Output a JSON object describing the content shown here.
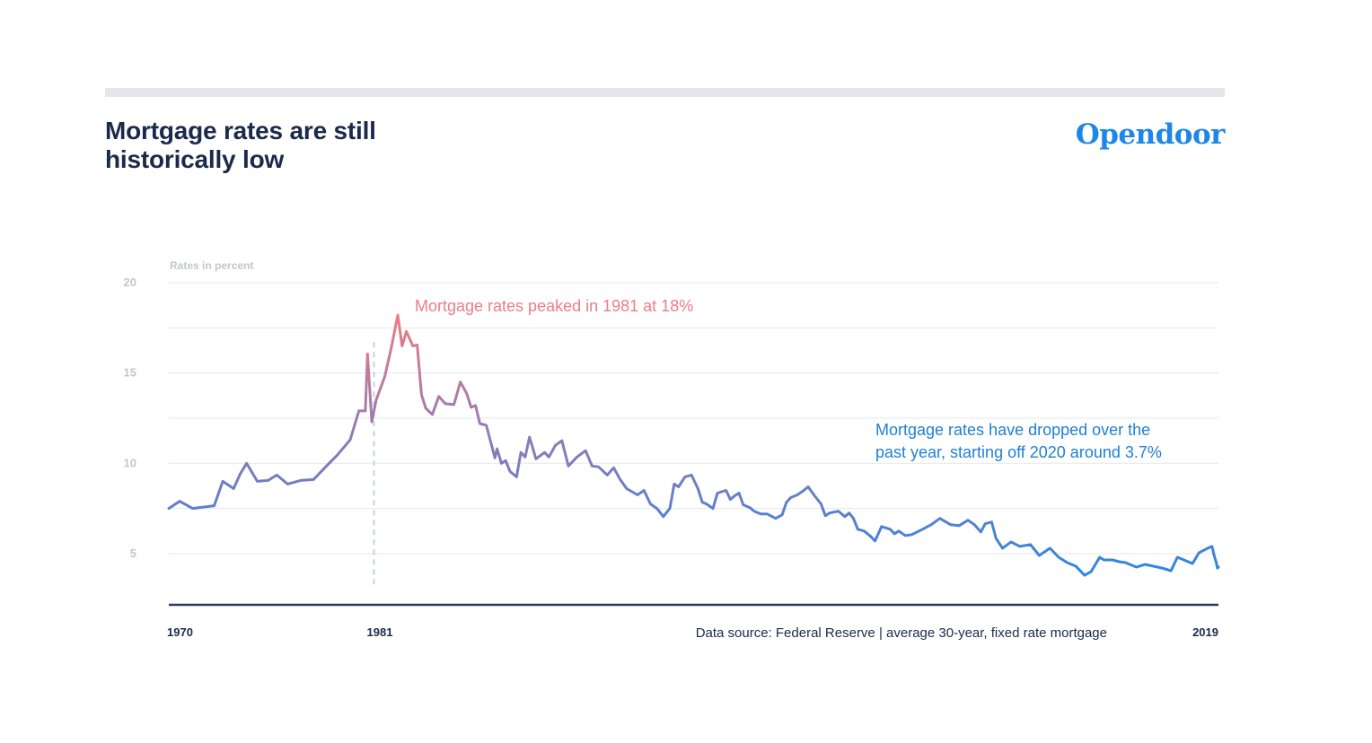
{
  "header": {
    "title_line1": "Mortgage rates are still",
    "title_line2": "historically low",
    "brand": "Opendoor"
  },
  "colors": {
    "title": "#1b2a4a",
    "brand": "#1c87e6",
    "line_early": "#5b7fd0",
    "line_peak": "#ef7c86",
    "line_late": "#2f86e0",
    "grid": "#e6e7ea",
    "baseline": "#2b3a55",
    "peak_marker": "#c9cfe0",
    "annotation_peak": "#ef7c86",
    "annotation_recent": "#1f7fd4",
    "tick_label": "#c3c6cd"
  },
  "chart_data": {
    "type": "line",
    "title": "Mortgage rates are still historically low",
    "xlabel": "",
    "ylabel": "Rates in percent",
    "x_tick_labels": [
      "1970",
      "1981",
      "2019"
    ],
    "x_tick_years": [
      1971.3,
      1980.8,
      2019.9
    ],
    "y_ticks": [
      5,
      10,
      15,
      20
    ],
    "y_gridlines": [
      5,
      7.5,
      10,
      12.5,
      15,
      17.5,
      20
    ],
    "xlim": [
      1971.3,
      2019.9
    ],
    "ylim": [
      2.8,
      20
    ],
    "grid": true,
    "legend": "none",
    "annotations": [
      {
        "text": "Mortgage rates peaked in 1981 at 18%",
        "x": 1980.8,
        "y": 18.2,
        "marker": "dashed-vertical"
      },
      {
        "text_line1": "Mortgage rates have dropped over the",
        "text_line2": "past year, starting off 2020 around 3.7%",
        "x": 2019.9,
        "y": 4.2
      }
    ],
    "source": "Data source:  Federal Reserve | average 30-year, fixed rate mortgage",
    "series": [
      {
        "name": "Average 30-year fixed rate mortgage (%)",
        "points": [
          [
            1971.3,
            7.5
          ],
          [
            1971.8,
            7.9
          ],
          [
            1972.4,
            7.5
          ],
          [
            1973.4,
            7.65
          ],
          [
            1973.8,
            9.0
          ],
          [
            1974.3,
            8.6
          ],
          [
            1974.6,
            9.4
          ],
          [
            1974.9,
            10.0
          ],
          [
            1975.4,
            9.0
          ],
          [
            1975.9,
            9.05
          ],
          [
            1976.3,
            9.35
          ],
          [
            1976.8,
            8.85
          ],
          [
            1977.4,
            9.05
          ],
          [
            1978.0,
            9.1
          ],
          [
            1978.6,
            9.85
          ],
          [
            1979.1,
            10.45
          ],
          [
            1979.7,
            11.3
          ],
          [
            1980.1,
            12.9
          ],
          [
            1980.4,
            12.9
          ],
          [
            1980.5,
            16.05
          ],
          [
            1980.7,
            12.3
          ],
          [
            1980.9,
            13.5
          ],
          [
            1981.3,
            14.8
          ],
          [
            1981.6,
            16.4
          ],
          [
            1981.9,
            18.2
          ],
          [
            1982.1,
            16.5
          ],
          [
            1982.3,
            17.3
          ],
          [
            1982.6,
            16.5
          ],
          [
            1982.8,
            16.55
          ],
          [
            1983.0,
            13.8
          ],
          [
            1983.2,
            13.05
          ],
          [
            1983.5,
            12.7
          ],
          [
            1983.8,
            13.7
          ],
          [
            1984.1,
            13.3
          ],
          [
            1984.5,
            13.25
          ],
          [
            1984.8,
            14.5
          ],
          [
            1985.1,
            13.85
          ],
          [
            1985.3,
            13.1
          ],
          [
            1985.5,
            13.2
          ],
          [
            1985.7,
            12.2
          ],
          [
            1986.0,
            12.1
          ],
          [
            1986.4,
            10.3
          ],
          [
            1986.5,
            10.8
          ],
          [
            1986.7,
            10.0
          ],
          [
            1986.9,
            10.15
          ],
          [
            1987.1,
            9.55
          ],
          [
            1987.4,
            9.25
          ],
          [
            1987.6,
            10.6
          ],
          [
            1987.8,
            10.35
          ],
          [
            1988.0,
            11.45
          ],
          [
            1988.3,
            10.25
          ],
          [
            1988.7,
            10.6
          ],
          [
            1988.9,
            10.35
          ],
          [
            1989.2,
            11.0
          ],
          [
            1989.5,
            11.25
          ],
          [
            1989.8,
            9.85
          ],
          [
            1990.2,
            10.35
          ],
          [
            1990.6,
            10.7
          ],
          [
            1990.9,
            9.85
          ],
          [
            1991.2,
            9.8
          ],
          [
            1991.6,
            9.35
          ],
          [
            1991.9,
            9.75
          ],
          [
            1992.2,
            9.1
          ],
          [
            1992.5,
            8.6
          ],
          [
            1993.0,
            8.25
          ],
          [
            1993.3,
            8.5
          ],
          [
            1993.6,
            7.75
          ],
          [
            1993.9,
            7.5
          ],
          [
            1994.2,
            7.05
          ],
          [
            1994.5,
            7.5
          ],
          [
            1994.7,
            8.85
          ],
          [
            1994.9,
            8.7
          ],
          [
            1995.2,
            9.25
          ],
          [
            1995.5,
            9.35
          ],
          [
            1995.8,
            8.6
          ],
          [
            1996.0,
            7.85
          ],
          [
            1996.2,
            7.75
          ],
          [
            1996.5,
            7.5
          ],
          [
            1996.7,
            8.35
          ],
          [
            1997.1,
            8.5
          ],
          [
            1997.3,
            8.0
          ],
          [
            1997.5,
            8.2
          ],
          [
            1997.7,
            8.35
          ],
          [
            1997.9,
            7.7
          ],
          [
            1998.2,
            7.55
          ],
          [
            1998.4,
            7.35
          ],
          [
            1998.7,
            7.2
          ],
          [
            1999.0,
            7.2
          ],
          [
            1999.4,
            6.95
          ],
          [
            1999.7,
            7.15
          ],
          [
            1999.9,
            7.85
          ],
          [
            2000.1,
            8.1
          ],
          [
            2000.4,
            8.25
          ],
          [
            2000.7,
            8.5
          ],
          [
            2000.9,
            8.7
          ],
          [
            2001.2,
            8.2
          ],
          [
            2001.5,
            7.75
          ],
          [
            2001.7,
            7.1
          ],
          [
            2001.9,
            7.25
          ],
          [
            2002.3,
            7.35
          ],
          [
            2002.6,
            7.05
          ],
          [
            2002.8,
            7.25
          ],
          [
            2003.0,
            6.95
          ],
          [
            2003.2,
            6.35
          ],
          [
            2003.5,
            6.25
          ],
          [
            2003.8,
            5.95
          ],
          [
            2004.0,
            5.7
          ],
          [
            2004.3,
            6.5
          ],
          [
            2004.7,
            6.35
          ],
          [
            2004.9,
            6.1
          ],
          [
            2005.1,
            6.25
          ],
          [
            2005.4,
            6.0
          ],
          [
            2005.7,
            6.05
          ],
          [
            2006.2,
            6.35
          ],
          [
            2006.6,
            6.6
          ],
          [
            2007.0,
            6.95
          ],
          [
            2007.5,
            6.6
          ],
          [
            2007.9,
            6.55
          ],
          [
            2008.3,
            6.85
          ],
          [
            2008.6,
            6.6
          ],
          [
            2008.9,
            6.2
          ],
          [
            2009.1,
            6.65
          ],
          [
            2009.4,
            6.75
          ],
          [
            2009.6,
            5.85
          ],
          [
            2009.9,
            5.3
          ],
          [
            2010.3,
            5.65
          ],
          [
            2010.7,
            5.4
          ],
          [
            2011.2,
            5.5
          ],
          [
            2011.6,
            4.9
          ],
          [
            2012.1,
            5.3
          ],
          [
            2012.5,
            4.8
          ],
          [
            2012.9,
            4.5
          ],
          [
            2013.3,
            4.3
          ],
          [
            2013.7,
            3.8
          ],
          [
            2014.0,
            4.0
          ],
          [
            2014.4,
            4.8
          ],
          [
            2014.6,
            4.65
          ],
          [
            2015.0,
            4.65
          ],
          [
            2015.3,
            4.55
          ],
          [
            2015.6,
            4.5
          ],
          [
            2016.1,
            4.25
          ],
          [
            2016.5,
            4.4
          ],
          [
            2016.9,
            4.3
          ],
          [
            2017.3,
            4.2
          ],
          [
            2017.7,
            4.05
          ],
          [
            2018.0,
            4.8
          ],
          [
            2018.3,
            4.65
          ],
          [
            2018.7,
            4.45
          ],
          [
            2019.0,
            5.05
          ],
          [
            2019.4,
            5.3
          ],
          [
            2019.6,
            5.4
          ],
          [
            2019.7,
            4.9
          ],
          [
            2019.8,
            4.5
          ],
          [
            2019.85,
            4.2
          ],
          [
            2019.9,
            4.25
          ]
        ]
      }
    ]
  }
}
